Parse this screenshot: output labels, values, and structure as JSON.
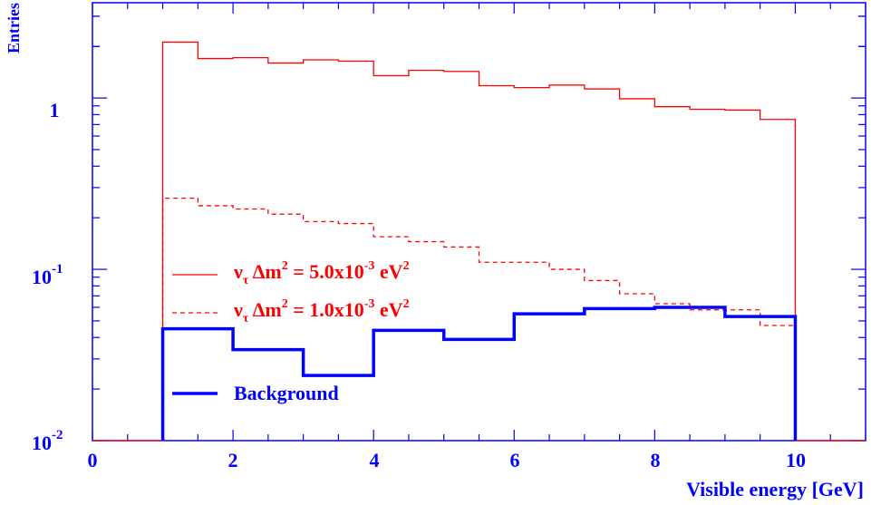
{
  "chart_data": {
    "type": "histogram",
    "xlabel": "Visible energy [GeV]",
    "ylabel": "Entries",
    "xlim": [
      0,
      11
    ],
    "ylim": [
      0.01,
      3.6
    ],
    "yscale": "log",
    "x_ticks": [
      "0",
      "2",
      "4",
      "6",
      "8",
      "10"
    ],
    "x_tick_values": [
      0,
      2,
      4,
      6,
      8,
      10
    ],
    "y_ticks": [
      {
        "value": 1,
        "base": "1",
        "exp": ""
      },
      {
        "value": 0.1,
        "base": "10",
        "exp": "-1"
      },
      {
        "value": 0.01,
        "base": "10",
        "exp": "-2"
      }
    ],
    "series": [
      {
        "name": "ν_τ Δm² = 5.0x10⁻³ eV²",
        "legend_prefix": "ν",
        "legend_sub": "τ",
        "legend_mid": " Δm",
        "legend_sup1": "2",
        "legend_eq": " = 5.0x10",
        "legend_sup2": "-3",
        "legend_unit": " eV",
        "legend_sup3": "2",
        "style": "solid",
        "color": "#ff0000",
        "bin_edges": [
          1,
          1.5,
          2,
          2.5,
          3,
          3.5,
          4,
          4.5,
          5,
          5.5,
          6,
          6.5,
          7,
          7.5,
          8,
          8.5,
          9,
          9.5,
          10
        ],
        "values": [
          2.12,
          1.7,
          1.72,
          1.6,
          1.67,
          1.64,
          1.35,
          1.45,
          1.43,
          1.18,
          1.15,
          1.19,
          1.13,
          0.99,
          0.89,
          0.86,
          0.85,
          0.75
        ]
      },
      {
        "name": "ν_τ Δm² = 1.0x10⁻³ eV²",
        "legend_prefix": "ν",
        "legend_sub": "τ",
        "legend_mid": " Δm",
        "legend_sup1": "2",
        "legend_eq": " = 1.0x10",
        "legend_sup2": "-3",
        "legend_unit": " eV",
        "legend_sup3": "2",
        "style": "dashed",
        "color": "#ff0000",
        "bin_edges": [
          1,
          1.5,
          2,
          2.5,
          3,
          3.5,
          4,
          4.5,
          5,
          5.5,
          6,
          6.5,
          7,
          7.5,
          8,
          8.5,
          9,
          9.5,
          10
        ],
        "values": [
          0.26,
          0.235,
          0.225,
          0.21,
          0.19,
          0.185,
          0.155,
          0.145,
          0.135,
          0.11,
          0.11,
          0.1,
          0.086,
          0.072,
          0.063,
          0.058,
          0.058,
          0.047
        ]
      },
      {
        "name": "Background",
        "style": "solid-thick",
        "color": "#0000ff",
        "bin_edges": [
          1,
          2,
          3,
          4,
          5,
          6,
          7,
          8,
          9,
          10
        ],
        "values": [
          0.045,
          0.034,
          0.024,
          0.044,
          0.039,
          0.055,
          0.059,
          0.06,
          0.053
        ]
      }
    ],
    "legend_position": "lower-left inside plot",
    "grid": false
  }
}
